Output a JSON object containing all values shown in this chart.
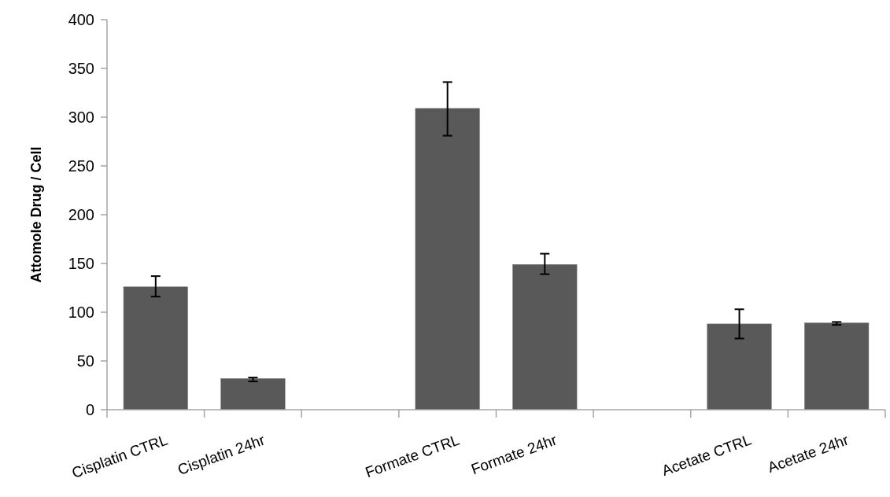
{
  "chart_data": {
    "type": "bar",
    "ylabel": "Attomole Drug / Cell",
    "categories": [
      "Cisplatin CTRL",
      "Cisplatin 24hr",
      null,
      "Formate CTRL",
      "Formate 24hr",
      null,
      "Acetate CTRL",
      "Acetate 24hr"
    ],
    "values": [
      126,
      32,
      null,
      309,
      149,
      null,
      88,
      89
    ],
    "errors": [
      [
        116,
        137
      ],
      [
        29,
        33
      ],
      null,
      [
        281,
        336
      ],
      [
        139,
        160
      ],
      null,
      [
        73,
        103
      ],
      [
        87,
        90
      ]
    ],
    "color": "#595959",
    "ylim": [
      0,
      400
    ],
    "yticks": [
      0,
      50,
      100,
      150,
      200,
      250,
      300,
      350,
      400
    ],
    "grid": false
  }
}
